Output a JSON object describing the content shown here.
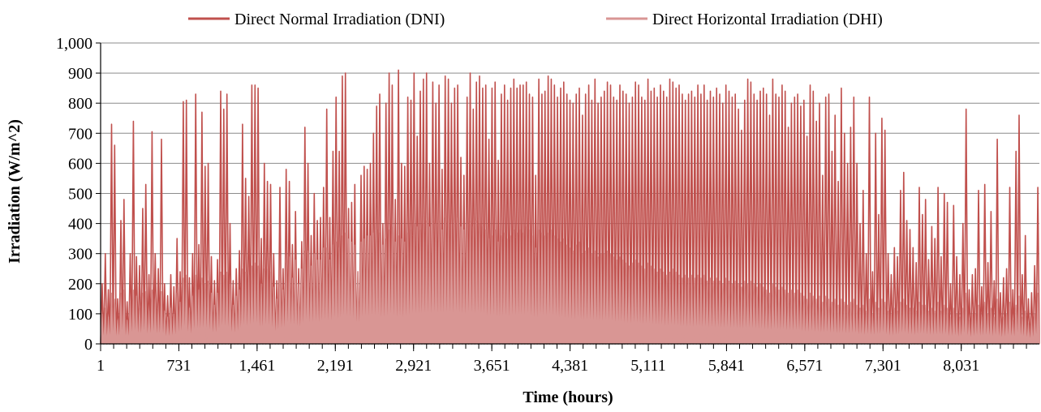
{
  "chart_data": {
    "type": "line",
    "title": "",
    "xlabel": "Time (hours)",
    "ylabel": "Irradiation (W/m^2)",
    "xlim": [
      1,
      8760
    ],
    "ylim": [
      0,
      1000
    ],
    "yticks": [
      0,
      100,
      200,
      300,
      400,
      500,
      600,
      700,
      800,
      900,
      1000
    ],
    "ytick_labels": [
      "0",
      "100",
      "200",
      "300",
      "400",
      "500",
      "600",
      "700",
      "800",
      "900",
      "1,000"
    ],
    "xticks": [
      1,
      731,
      1461,
      2191,
      2921,
      3651,
      4381,
      5111,
      5841,
      6571,
      7301,
      8031
    ],
    "xtick_labels": [
      "1",
      "731",
      "1,461",
      "2,191",
      "2,921",
      "3,651",
      "4,381",
      "5,111",
      "5,841",
      "6,571",
      "7,301",
      "8,031"
    ],
    "grid": "horizontal",
    "legend_position": "top",
    "series": [
      {
        "name": "Direct Normal Irradiation (DNI)",
        "color": "#c0504d",
        "sampling": "approximate daily peak, one value per ~24 hours",
        "values": [
          200,
          300,
          180,
          730,
          660,
          150,
          410,
          480,
          140,
          300,
          740,
          290,
          260,
          450,
          530,
          230,
          705,
          300,
          250,
          680,
          200,
          160,
          230,
          190,
          350,
          240,
          805,
          810,
          220,
          300,
          830,
          330,
          770,
          590,
          600,
          290,
          210,
          280,
          840,
          780,
          830,
          400,
          210,
          250,
          310,
          730,
          550,
          490,
          860,
          860,
          850,
          350,
          600,
          540,
          530,
          300,
          210,
          520,
          250,
          580,
          540,
          330,
          440,
          250,
          340,
          720,
          600,
          360,
          500,
          410,
          420,
          520,
          780,
          420,
          640,
          820,
          640,
          890,
          900,
          450,
          470,
          530,
          240,
          560,
          590,
          580,
          600,
          700,
          790,
          830,
          400,
          800,
          900,
          860,
          480,
          910,
          600,
          590,
          820,
          810,
          900,
          690,
          840,
          880,
          900,
          600,
          870,
          800,
          860,
          580,
          890,
          880,
          800,
          850,
          860,
          620,
          560,
          820,
          900,
          780,
          870,
          890,
          850,
          860,
          680,
          850,
          870,
          610,
          830,
          860,
          810,
          850,
          880,
          850,
          860,
          860,
          870,
          830,
          820,
          560,
          880,
          830,
          840,
          890,
          880,
          860,
          820,
          850,
          870,
          830,
          810,
          800,
          830,
          850,
          760,
          830,
          860,
          810,
          880,
          800,
          820,
          840,
          870,
          860,
          820,
          810,
          860,
          840,
          830,
          800,
          820,
          870,
          860,
          820,
          810,
          880,
          840,
          850,
          820,
          860,
          840,
          820,
          880,
          870,
          850,
          860,
          830,
          810,
          830,
          840,
          820,
          860,
          830,
          860,
          810,
          840,
          820,
          850,
          830,
          800,
          860,
          840,
          820,
          830,
          780,
          710,
          810,
          880,
          870,
          830,
          810,
          840,
          850,
          830,
          760,
          880,
          830,
          820,
          860,
          840,
          720,
          800,
          820,
          830,
          790,
          810,
          690,
          860,
          840,
          740,
          800,
          560,
          820,
          830,
          640,
          760,
          540,
          850,
          700,
          600,
          720,
          820,
          600,
          400,
          510,
          300,
          820,
          240,
          700,
          430,
          750,
          710,
          300,
          230,
          320,
          290,
          510,
          570,
          410,
          380,
          320,
          270,
          520,
          430,
          480,
          280,
          390,
          350,
          520,
          290,
          500,
          470,
          200,
          460,
          290,
          230,
          400,
          780,
          180,
          230,
          250,
          510,
          190,
          530,
          270,
          440,
          210,
          680,
          170,
          220,
          250,
          520,
          180,
          640,
          760,
          230,
          360,
          150,
          170,
          260,
          520
        ],
        "fill": "none"
      },
      {
        "name": "Direct Horizontal Irradiation (DHI)",
        "color": "#d99694",
        "sampling": "approximate daily peak, one value per ~24 hours",
        "values": [
          100,
          120,
          90,
          170,
          150,
          80,
          170,
          180,
          80,
          140,
          180,
          160,
          120,
          170,
          175,
          110,
          180,
          150,
          120,
          175,
          110,
          90,
          120,
          100,
          170,
          140,
          220,
          230,
          120,
          160,
          230,
          180,
          220,
          200,
          210,
          170,
          130,
          170,
          240,
          230,
          240,
          200,
          130,
          160,
          180,
          250,
          240,
          230,
          260,
          270,
          260,
          200,
          250,
          250,
          240,
          190,
          150,
          250,
          180,
          270,
          290,
          220,
          280,
          200,
          250,
          310,
          310,
          260,
          300,
          280,
          280,
          320,
          320,
          280,
          330,
          340,
          320,
          360,
          370,
          350,
          340,
          330,
          240,
          340,
          350,
          360,
          360,
          370,
          380,
          370,
          330,
          350,
          380,
          390,
          340,
          360,
          350,
          340,
          370,
          380,
          400,
          390,
          380,
          400,
          410,
          390,
          410,
          400,
          410,
          380,
          420,
          410,
          400,
          410,
          420,
          390,
          380,
          400,
          410,
          390,
          410,
          400,
          390,
          380,
          350,
          360,
          380,
          340,
          360,
          370,
          350,
          360,
          380,
          370,
          380,
          370,
          390,
          380,
          360,
          320,
          380,
          370,
          360,
          370,
          380,
          360,
          350,
          340,
          350,
          330,
          320,
          310,
          330,
          340,
          300,
          310,
          320,
          300,
          310,
          290,
          300,
          300,
          310,
          300,
          290,
          280,
          290,
          280,
          270,
          260,
          270,
          280,
          270,
          260,
          250,
          270,
          260,
          250,
          240,
          250,
          240,
          230,
          240,
          250,
          240,
          230,
          220,
          230,
          220,
          230,
          220,
          230,
          220,
          230,
          210,
          220,
          210,
          220,
          210,
          200,
          220,
          210,
          200,
          210,
          200,
          190,
          210,
          200,
          210,
          200,
          190,
          200,
          190,
          180,
          170,
          200,
          190,
          180,
          190,
          180,
          170,
          180,
          170,
          180,
          170,
          160,
          150,
          170,
          160,
          150,
          160,
          140,
          160,
          150,
          140,
          150,
          130,
          150,
          140,
          130,
          140,
          150,
          130,
          120,
          130,
          110,
          150,
          100,
          140,
          120,
          150,
          140,
          110,
          100,
          120,
          110,
          140,
          150,
          130,
          120,
          120,
          110,
          140,
          130,
          130,
          110,
          120,
          110,
          140,
          110,
          130,
          120,
          90,
          120,
          100,
          90,
          120,
          170,
          80,
          100,
          100,
          130,
          90,
          140,
          100,
          120,
          90,
          150,
          80,
          90,
          100,
          140,
          80,
          130,
          160,
          90,
          110,
          70,
          80,
          100,
          170
        ],
        "fill": "area"
      }
    ]
  }
}
